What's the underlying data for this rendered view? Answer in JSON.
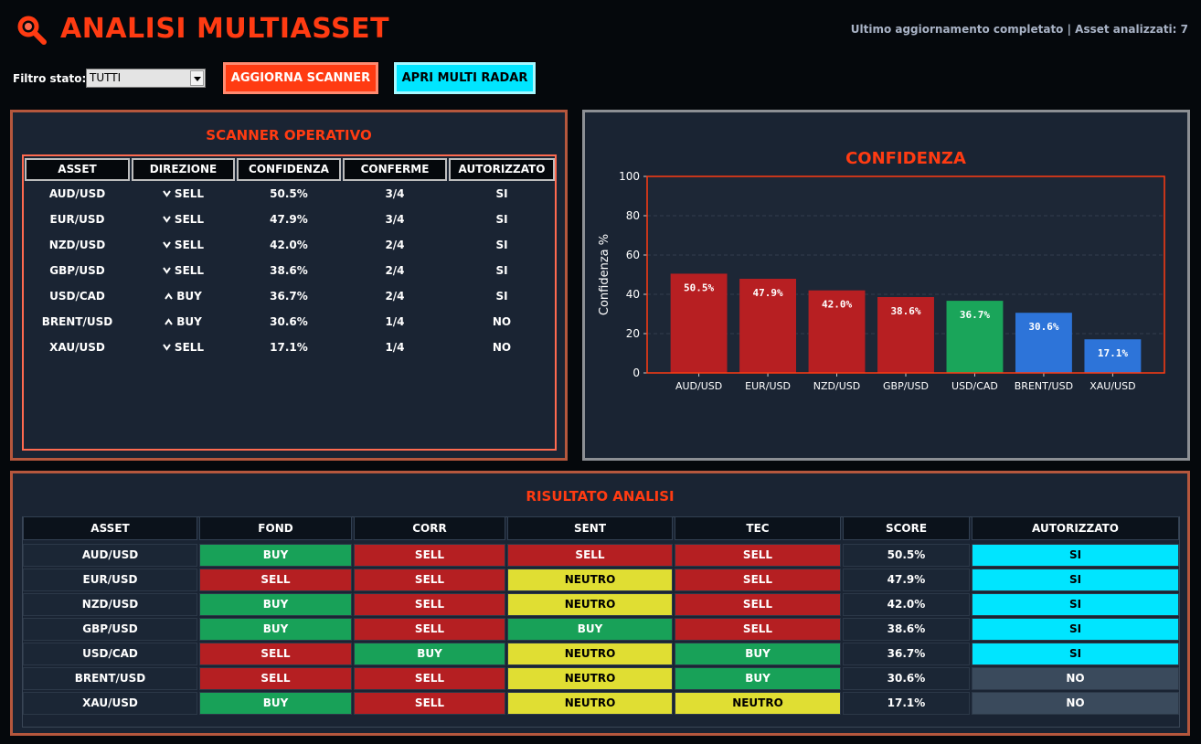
{
  "header": {
    "title": "ANALISI MULTIASSET",
    "status": "Ultimo aggiornamento completato | Asset analizzati: 7",
    "icon": "magnifier-icon",
    "accent": "#ff3b12"
  },
  "toolbar": {
    "filter_label": "Filtro stato:",
    "filter_value": "TUTTI",
    "refresh_label": "AGGIORNA SCANNER",
    "radar_label": "APRI MULTI RADAR"
  },
  "scanner": {
    "title": "SCANNER OPERATIVO",
    "columns": [
      "ASSET",
      "DIREZIONE",
      "CONFIDENZA",
      "CONFERME",
      "AUTORIZZATO"
    ],
    "rows": [
      {
        "asset": "AUD/USD",
        "direction": "SELL",
        "arrow": "down",
        "confidence": "50.5%",
        "confirms": "3/4",
        "authorized": "SI"
      },
      {
        "asset": "EUR/USD",
        "direction": "SELL",
        "arrow": "down",
        "confidence": "47.9%",
        "confirms": "3/4",
        "authorized": "SI"
      },
      {
        "asset": "NZD/USD",
        "direction": "SELL",
        "arrow": "down",
        "confidence": "42.0%",
        "confirms": "2/4",
        "authorized": "SI"
      },
      {
        "asset": "GBP/USD",
        "direction": "SELL",
        "arrow": "down",
        "confidence": "38.6%",
        "confirms": "2/4",
        "authorized": "SI"
      },
      {
        "asset": "USD/CAD",
        "direction": "BUY",
        "arrow": "up",
        "confidence": "36.7%",
        "confirms": "2/4",
        "authorized": "SI"
      },
      {
        "asset": "BRENT/USD",
        "direction": "BUY",
        "arrow": "up",
        "confidence": "30.6%",
        "confirms": "1/4",
        "authorized": "NO"
      },
      {
        "asset": "XAU/USD",
        "direction": "SELL",
        "arrow": "down",
        "confidence": "17.1%",
        "confirms": "1/4",
        "authorized": "NO"
      }
    ]
  },
  "chart_data": {
    "type": "bar",
    "title": "CONFIDENZA",
    "ylabel": "Confidenza %",
    "xlabel": "",
    "ylim": [
      0,
      100
    ],
    "yticks": [
      0,
      20,
      40,
      60,
      80,
      100
    ],
    "grid": true,
    "categories": [
      "AUD/USD",
      "EUR/USD",
      "NZD/USD",
      "GBP/USD",
      "USD/CAD",
      "BRENT/USD",
      "XAU/USD"
    ],
    "values": [
      50.5,
      47.9,
      42.0,
      38.6,
      36.7,
      30.6,
      17.1
    ],
    "labels": [
      "50.5%",
      "47.9%",
      "42.0%",
      "38.6%",
      "36.7%",
      "30.6%",
      "17.1%"
    ],
    "colors": [
      "#b71f22",
      "#b71f22",
      "#b71f22",
      "#b71f22",
      "#1aa55a",
      "#2d74d9",
      "#2d74d9"
    ]
  },
  "result": {
    "title": "RISULTATO ANALISI",
    "columns": [
      "ASSET",
      "FOND",
      "CORR",
      "SENT",
      "TEC",
      "SCORE",
      "AUTORIZZATO"
    ],
    "rows": [
      {
        "asset": "AUD/USD",
        "fond": "BUY",
        "corr": "SELL",
        "sent": "SELL",
        "tec": "SELL",
        "score": "50.5%",
        "auth": "SI"
      },
      {
        "asset": "EUR/USD",
        "fond": "SELL",
        "corr": "SELL",
        "sent": "NEUTRO",
        "tec": "SELL",
        "score": "47.9%",
        "auth": "SI"
      },
      {
        "asset": "NZD/USD",
        "fond": "BUY",
        "corr": "SELL",
        "sent": "NEUTRO",
        "tec": "SELL",
        "score": "42.0%",
        "auth": "SI"
      },
      {
        "asset": "GBP/USD",
        "fond": "BUY",
        "corr": "SELL",
        "sent": "BUY",
        "tec": "SELL",
        "score": "38.6%",
        "auth": "SI"
      },
      {
        "asset": "USD/CAD",
        "fond": "SELL",
        "corr": "BUY",
        "sent": "NEUTRO",
        "tec": "BUY",
        "score": "36.7%",
        "auth": "SI"
      },
      {
        "asset": "BRENT/USD",
        "fond": "SELL",
        "corr": "SELL",
        "sent": "NEUTRO",
        "tec": "BUY",
        "score": "30.6%",
        "auth": "NO"
      },
      {
        "asset": "XAU/USD",
        "fond": "BUY",
        "corr": "SELL",
        "sent": "NEUTRO",
        "tec": "NEUTRO",
        "score": "17.1%",
        "auth": "NO"
      }
    ],
    "colors": {
      "BUY": "#18a158",
      "SELL": "#b51f22",
      "NEUTRO": "#e0de33",
      "SI": "#00e5ff",
      "NO": "#3a4a5c"
    }
  }
}
